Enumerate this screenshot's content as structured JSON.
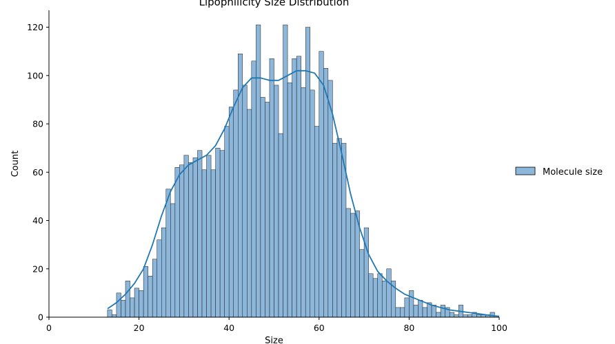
{
  "chart_data": {
    "type": "bar",
    "subtype": "histogram-with-kde",
    "title": "Lipophilicity Size Distribution",
    "xlabel": "Size",
    "ylabel": "Count",
    "xlim": [
      0,
      100
    ],
    "ylim": [
      0,
      127
    ],
    "xticks": [
      0,
      20,
      40,
      60,
      80,
      100
    ],
    "yticks": [
      0,
      20,
      40,
      60,
      80,
      100,
      120
    ],
    "bin_start": 13,
    "bin_width": 1,
    "counts": [
      3,
      1,
      10,
      7,
      15,
      8,
      12,
      11,
      21,
      17,
      24,
      32,
      37,
      53,
      47,
      62,
      63,
      67,
      64,
      66,
      69,
      61,
      67,
      61,
      70,
      69,
      79,
      87,
      94,
      109,
      96,
      86,
      106,
      121,
      91,
      89,
      107,
      96,
      76,
      121,
      97,
      107,
      108,
      95,
      120,
      94,
      79,
      110,
      103,
      98,
      72,
      74,
      72,
      45,
      43,
      44,
      28,
      37,
      18,
      16,
      18,
      15,
      20,
      15,
      4,
      4,
      8,
      11,
      5,
      7,
      4,
      6,
      5,
      2,
      5,
      4,
      2,
      1,
      5,
      1,
      1,
      2,
      1,
      1,
      1,
      2
    ],
    "kde": {
      "x": [
        13,
        15,
        17,
        19,
        21,
        23,
        25,
        27,
        29,
        31,
        33,
        35,
        37,
        39,
        41,
        43,
        45,
        47,
        49,
        51,
        53,
        55,
        57,
        59,
        61,
        63,
        65,
        67,
        69,
        71,
        73,
        75,
        77,
        79,
        81,
        83,
        85,
        87,
        89,
        91,
        93,
        95,
        97,
        99,
        100
      ],
      "y": [
        3.5,
        6,
        9.5,
        14,
        20,
        30,
        42,
        52,
        59,
        63,
        65,
        67,
        71,
        78,
        87,
        95,
        99,
        99,
        98,
        98,
        100,
        102,
        102,
        101,
        96,
        84,
        68,
        51,
        37,
        26,
        19,
        15,
        12,
        9.5,
        8,
        6.5,
        5,
        4,
        3,
        2.5,
        2,
        1.5,
        1,
        0.5,
        0.4
      ]
    },
    "series": [
      {
        "name": "Molecule size",
        "color": "#1f77b4",
        "fill": "#8cb6da"
      }
    ],
    "legend": {
      "position": "right",
      "entries": [
        "Molecule size"
      ]
    }
  }
}
